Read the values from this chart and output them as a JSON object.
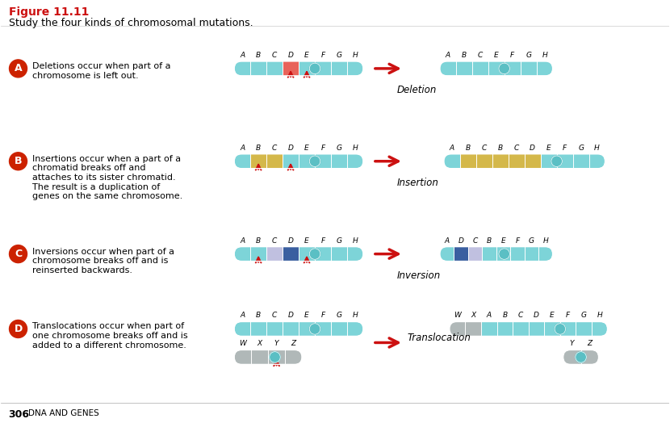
{
  "title": "Figure 11.11",
  "subtitle": "Study the four kinds of chromosomal mutations.",
  "bg_color": "#ffffff",
  "teal_light": "#7dd4d8",
  "teal_mid": "#5bbfc4",
  "teal_dark": "#3a9fa5",
  "centromere_color": "#4ec8cc",
  "red_segment": "#e8635a",
  "yellow_segment": "#d4b84a",
  "blue_segment": "#3a5fa0",
  "purple_segment": "#c0c0e0",
  "gray_segment": "#b0b8b8",
  "arrow_color": "#cc1111",
  "sections": [
    {
      "badge": "A",
      "badge_color": "#cc2200",
      "text": "Deletions occur when part of a\nchromosome is left out.",
      "mutation_label": "Deletion"
    },
    {
      "badge": "B",
      "badge_color": "#cc2200",
      "text": "Insertions occur when a part of a\nchromatid breaks off and\nattaches to its sister chromatid.\nThe result is a duplication of\ngenes on the same chromosome.",
      "mutation_label": "Insertion"
    },
    {
      "badge": "C",
      "badge_color": "#cc2200",
      "text": "Inversions occur when part of a\nchromosome breaks off and is\nreinserted backwards.",
      "mutation_label": "Inversion"
    },
    {
      "badge": "D",
      "badge_color": "#cc2200",
      "text": "Translocations occur when part of\none chromosome breaks off and is\nadded to a different chromosome.",
      "mutation_label": "Translocation"
    }
  ]
}
